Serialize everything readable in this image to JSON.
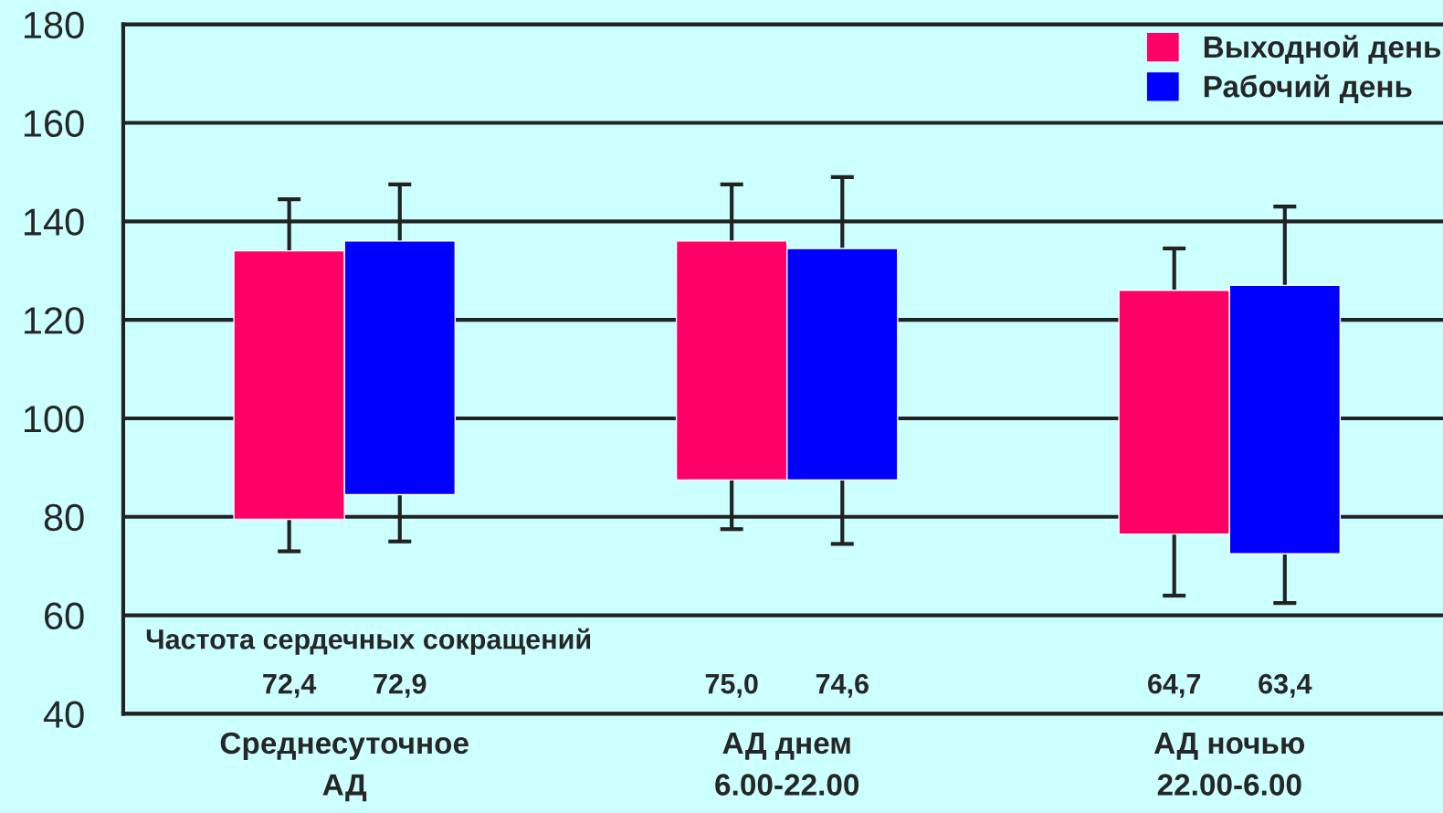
{
  "chart_data": {
    "type": "bar",
    "categories": [
      "Среднесуточное\nАД",
      "АД днем\n6.00-22.00",
      "АД ночью\n22.00-6.00"
    ],
    "series": [
      {
        "name": "Выходной день",
        "color": "#ff0066",
        "base": [
          79.5,
          87.5,
          76.5
        ],
        "values": [
          54.5,
          48.5,
          49.5
        ],
        "errors": [
          [
            73,
            144.5
          ],
          [
            77.5,
            147.5
          ],
          [
            64,
            134.5
          ]
        ]
      },
      {
        "name": "Рабочий день",
        "color": "#0000ff",
        "base": [
          84.5,
          87.5,
          72.5
        ],
        "values": [
          51.5,
          47,
          54.5
        ],
        "errors": [
          [
            75,
            147.5
          ],
          [
            74.5,
            149
          ],
          [
            62.5,
            143
          ]
        ]
      }
    ],
    "ylim": [
      40,
      180
    ],
    "yticks": [
      40,
      60,
      80,
      100,
      120,
      140,
      160,
      180
    ],
    "grid": "y",
    "legend": "top right",
    "annotations": [
      "Частота сердечных сокращений",
      "72,4",
      "72,9",
      "75,0",
      "74,6",
      "64,7",
      "63,4"
    ]
  }
}
